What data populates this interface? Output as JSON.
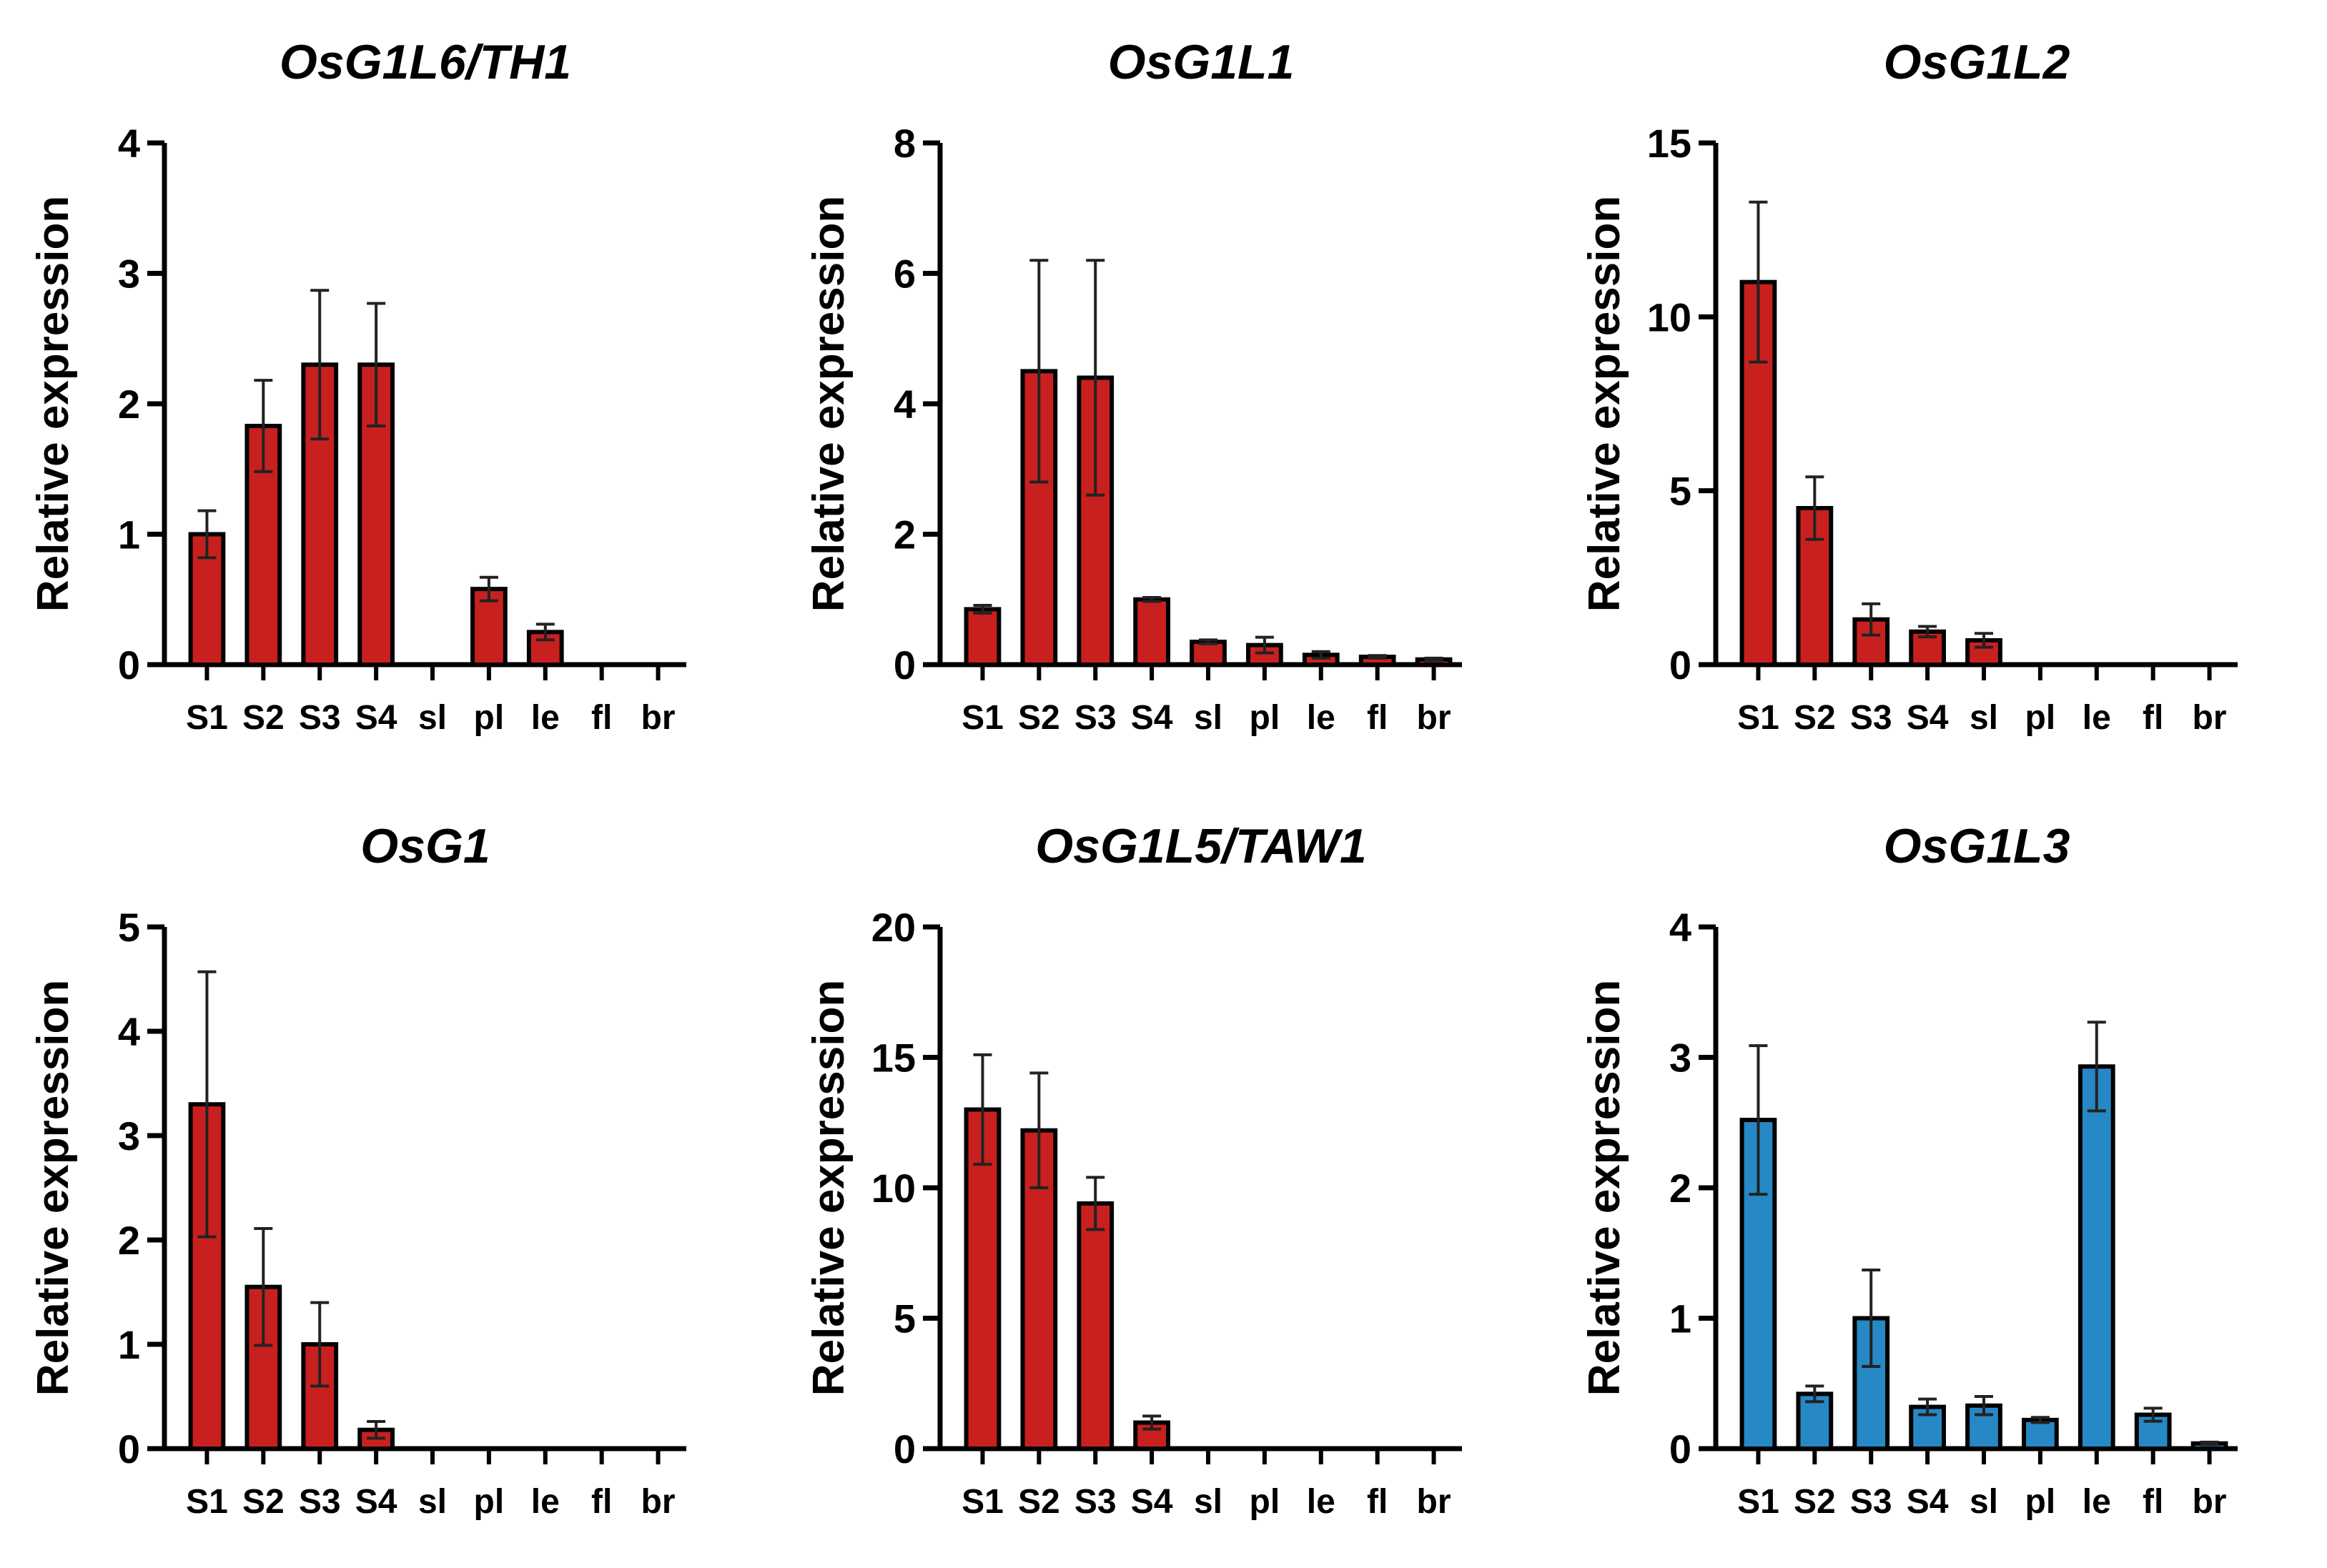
{
  "colors": {
    "red": "#c8201f",
    "blue": "#2688c4",
    "axis": "#000000"
  },
  "chart_data": [
    {
      "type": "bar",
      "title": "OsG1L6/TH1",
      "ylabel": "Relative expression",
      "ylim": [
        0,
        4
      ],
      "yticks": [
        0,
        1,
        2,
        3,
        4
      ],
      "categories": [
        "S1",
        "S2",
        "S3",
        "S4",
        "sl",
        "pl",
        "le",
        "fl",
        "br"
      ],
      "values": [
        1.0,
        1.83,
        2.3,
        2.3,
        0,
        0.58,
        0.25,
        0,
        0
      ],
      "errors": [
        0.18,
        0.35,
        0.57,
        0.47,
        0,
        0.09,
        0.06,
        0,
        0
      ],
      "color": "red"
    },
    {
      "type": "bar",
      "title": "OsG1L1",
      "ylabel": "Relative expression",
      "ylim": [
        0,
        8
      ],
      "yticks": [
        0,
        2,
        4,
        6,
        8
      ],
      "categories": [
        "S1",
        "S2",
        "S3",
        "S4",
        "sl",
        "pl",
        "le",
        "fl",
        "br"
      ],
      "values": [
        0.85,
        4.5,
        4.4,
        1.0,
        0.35,
        0.3,
        0.15,
        0.12,
        0.08
      ],
      "errors": [
        0.06,
        1.7,
        1.8,
        0.03,
        0.03,
        0.12,
        0.05,
        0.02,
        0.02
      ],
      "color": "red"
    },
    {
      "type": "bar",
      "title": "OsG1L2",
      "ylabel": "Relative expression",
      "ylim": [
        0,
        15
      ],
      "yticks": [
        0,
        5,
        10,
        15
      ],
      "categories": [
        "S1",
        "S2",
        "S3",
        "S4",
        "sl",
        "pl",
        "le",
        "fl",
        "br"
      ],
      "values": [
        11.0,
        4.5,
        1.3,
        0.95,
        0.7,
        0,
        0,
        0,
        0
      ],
      "errors": [
        2.3,
        0.9,
        0.45,
        0.15,
        0.2,
        0,
        0,
        0,
        0
      ],
      "color": "red"
    },
    {
      "type": "bar",
      "title": "OsG1",
      "ylabel": "Relative expression",
      "ylim": [
        0,
        5
      ],
      "yticks": [
        0,
        1,
        2,
        3,
        4,
        5
      ],
      "categories": [
        "S1",
        "S2",
        "S3",
        "S4",
        "sl",
        "pl",
        "le",
        "fl",
        "br"
      ],
      "values": [
        3.3,
        1.55,
        1.0,
        0.18,
        0,
        0,
        0,
        0,
        0
      ],
      "errors": [
        1.27,
        0.56,
        0.4,
        0.08,
        0,
        0,
        0,
        0,
        0
      ],
      "color": "red"
    },
    {
      "type": "bar",
      "title": "OsG1L5/TAW1",
      "ylabel": "Relative expression",
      "ylim": [
        0,
        20
      ],
      "yticks": [
        0,
        5,
        10,
        15,
        20
      ],
      "categories": [
        "S1",
        "S2",
        "S3",
        "S4",
        "sl",
        "pl",
        "le",
        "fl",
        "br"
      ],
      "values": [
        13.0,
        12.2,
        9.4,
        1.0,
        0,
        0,
        0,
        0,
        0
      ],
      "errors": [
        2.1,
        2.2,
        1.0,
        0.25,
        0,
        0,
        0,
        0,
        0
      ],
      "color": "red"
    },
    {
      "type": "bar",
      "title": "OsG1L3",
      "ylabel": "Relative expression",
      "ylim": [
        0,
        4
      ],
      "yticks": [
        0,
        1,
        2,
        3,
        4
      ],
      "categories": [
        "S1",
        "S2",
        "S3",
        "S4",
        "sl",
        "pl",
        "le",
        "fl",
        "br"
      ],
      "values": [
        2.52,
        0.42,
        1.0,
        0.32,
        0.33,
        0.22,
        2.93,
        0.26,
        0.04
      ],
      "errors": [
        0.57,
        0.06,
        0.37,
        0.06,
        0.07,
        0.02,
        0.34,
        0.05,
        0.01
      ],
      "color": "blue"
    }
  ]
}
